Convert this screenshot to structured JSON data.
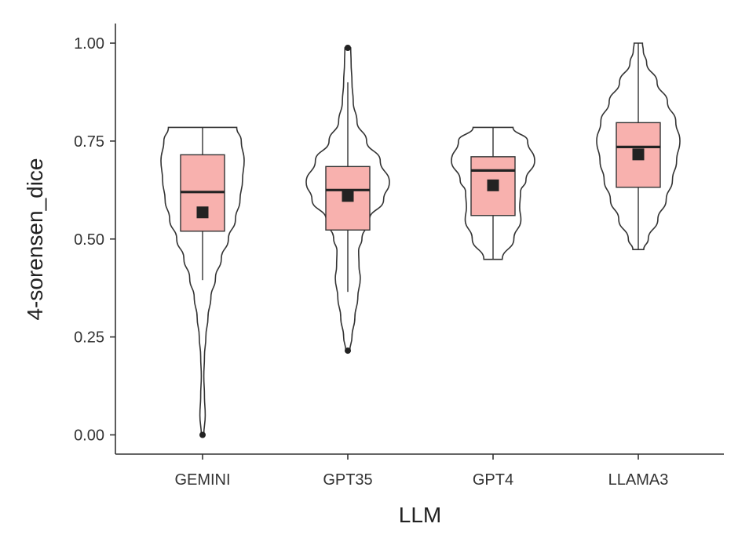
{
  "chart_data": {
    "type": "violin",
    "xlabel": "LLM",
    "ylabel": "4-sorensen_dice",
    "ylim": [
      -0.05,
      1.05
    ],
    "yticks": [
      0.0,
      0.25,
      0.5,
      0.75,
      1.0
    ],
    "ytick_labels": [
      "0.00",
      "0.25",
      "0.50",
      "0.75",
      "1.00"
    ],
    "categories": [
      "GEMINI",
      "GPT35",
      "GPT4",
      "LLAMA3"
    ],
    "grid": false,
    "legend": "none",
    "colors": {
      "box_fill": "#f8b1ae",
      "outline": "#333333",
      "mean": "#222222"
    },
    "groups": [
      {
        "name": "GEMINI",
        "box": {
          "q1": 0.52,
          "median": 0.62,
          "q3": 0.715,
          "whisker_low": 0.395,
          "whisker_high": 0.785,
          "mean": 0.568
        },
        "outliers": [
          0.0
        ],
        "violin": [
          [
            0.0,
            0.03
          ],
          [
            0.05,
            0.065
          ],
          [
            0.1,
            0.045
          ],
          [
            0.15,
            0.03
          ],
          [
            0.2,
            0.045
          ],
          [
            0.25,
            0.08
          ],
          [
            0.3,
            0.13
          ],
          [
            0.35,
            0.2
          ],
          [
            0.4,
            0.31
          ],
          [
            0.45,
            0.45
          ],
          [
            0.5,
            0.62
          ],
          [
            0.55,
            0.79
          ],
          [
            0.6,
            0.9
          ],
          [
            0.65,
            0.96
          ],
          [
            0.7,
            1.0
          ],
          [
            0.75,
            0.93
          ],
          [
            0.785,
            0.82
          ]
        ]
      },
      {
        "name": "GPT35",
        "box": {
          "q1": 0.523,
          "median": 0.625,
          "q3": 0.685,
          "whisker_low": 0.365,
          "whisker_high": 0.9,
          "mean": 0.61
        },
        "outliers": [
          0.215,
          0.988
        ],
        "violin": [
          [
            0.215,
            0.05
          ],
          [
            0.25,
            0.1
          ],
          [
            0.3,
            0.17
          ],
          [
            0.35,
            0.24
          ],
          [
            0.4,
            0.3
          ],
          [
            0.43,
            0.27
          ],
          [
            0.47,
            0.26
          ],
          [
            0.5,
            0.34
          ],
          [
            0.55,
            0.52
          ],
          [
            0.6,
            0.86
          ],
          [
            0.645,
            1.0
          ],
          [
            0.7,
            0.78
          ],
          [
            0.75,
            0.45
          ],
          [
            0.8,
            0.22
          ],
          [
            0.85,
            0.13
          ],
          [
            0.9,
            0.1
          ],
          [
            0.95,
            0.08
          ],
          [
            0.988,
            0.07
          ]
        ]
      },
      {
        "name": "GPT4",
        "box": {
          "q1": 0.56,
          "median": 0.675,
          "q3": 0.71,
          "whisker_low": 0.448,
          "whisker_high": 0.785,
          "mean": 0.637
        },
        "outliers": [],
        "violin": [
          [
            0.448,
            0.22
          ],
          [
            0.5,
            0.5
          ],
          [
            0.55,
            0.67
          ],
          [
            0.58,
            0.64
          ],
          [
            0.62,
            0.66
          ],
          [
            0.65,
            0.79
          ],
          [
            0.7,
            1.0
          ],
          [
            0.75,
            0.83
          ],
          [
            0.785,
            0.48
          ]
        ]
      },
      {
        "name": "LLAMA3",
        "box": {
          "q1": 0.632,
          "median": 0.735,
          "q3": 0.797,
          "whisker_low": 0.473,
          "whisker_high": 1.0,
          "mean": 0.716
        },
        "outliers": [],
        "violin": [
          [
            0.473,
            0.13
          ],
          [
            0.5,
            0.24
          ],
          [
            0.55,
            0.47
          ],
          [
            0.6,
            0.67
          ],
          [
            0.65,
            0.82
          ],
          [
            0.7,
            0.92
          ],
          [
            0.75,
            1.0
          ],
          [
            0.8,
            0.9
          ],
          [
            0.85,
            0.7
          ],
          [
            0.9,
            0.45
          ],
          [
            0.95,
            0.2
          ],
          [
            0.98,
            0.12
          ],
          [
            1.0,
            0.1
          ]
        ]
      }
    ]
  }
}
